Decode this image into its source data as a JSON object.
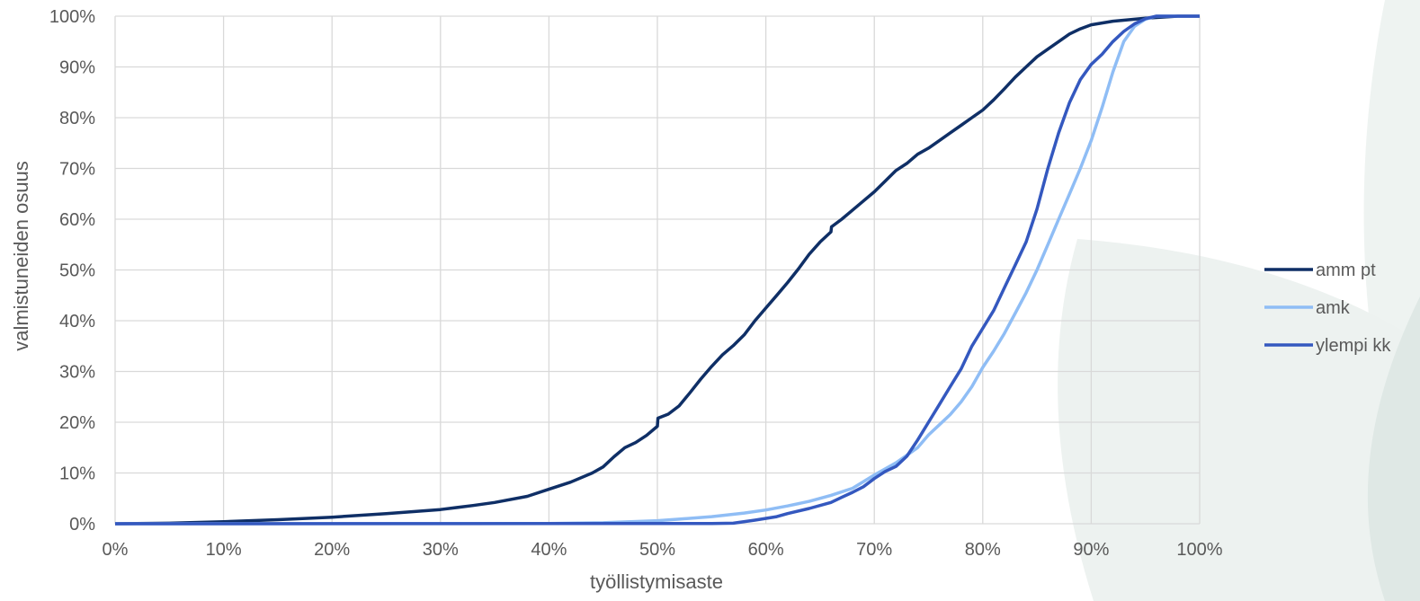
{
  "chart_data": {
    "type": "line",
    "xlabel": "työllistymisaste",
    "ylabel": "valmistuneiden osuus",
    "xlim": [
      0,
      100
    ],
    "ylim": [
      0,
      100
    ],
    "x_ticks": [
      "0%",
      "10%",
      "20%",
      "30%",
      "40%",
      "50%",
      "60%",
      "70%",
      "80%",
      "90%",
      "100%"
    ],
    "y_ticks": [
      "0%",
      "10%",
      "20%",
      "30%",
      "40%",
      "50%",
      "60%",
      "70%",
      "80%",
      "90%",
      "100%"
    ],
    "grid": true,
    "legend_position": "right",
    "series": [
      {
        "name": "amm pt",
        "color": "#0f2f66",
        "points": [
          [
            0,
            0
          ],
          [
            5,
            0.1
          ],
          [
            10,
            0.4
          ],
          [
            15,
            0.8
          ],
          [
            20,
            1.3
          ],
          [
            25,
            2
          ],
          [
            30,
            2.8
          ],
          [
            33,
            3.6
          ],
          [
            35,
            4.2
          ],
          [
            38,
            5.4
          ],
          [
            40,
            6.8
          ],
          [
            42,
            8.2
          ],
          [
            44,
            10
          ],
          [
            45,
            11.2
          ],
          [
            46,
            13.2
          ],
          [
            47,
            15
          ],
          [
            48,
            16
          ],
          [
            49,
            17.4
          ],
          [
            50,
            19.2
          ],
          [
            50.05,
            20.8
          ],
          [
            51,
            21.6
          ],
          [
            52,
            23.2
          ],
          [
            53,
            25.8
          ],
          [
            54,
            28.5
          ],
          [
            55,
            31
          ],
          [
            56,
            33.3
          ],
          [
            57,
            35.1
          ],
          [
            58,
            37.2
          ],
          [
            59,
            40
          ],
          [
            60,
            42.5
          ],
          [
            61,
            45
          ],
          [
            62,
            47.5
          ],
          [
            63,
            50.2
          ],
          [
            64,
            53.1
          ],
          [
            65,
            55.5
          ],
          [
            66,
            57.5
          ],
          [
            66.05,
            58.5
          ],
          [
            67,
            60
          ],
          [
            68,
            61.8
          ],
          [
            69,
            63.6
          ],
          [
            70,
            65.4
          ],
          [
            71,
            67.5
          ],
          [
            72,
            69.6
          ],
          [
            73,
            71
          ],
          [
            74,
            72.8
          ],
          [
            75,
            74
          ],
          [
            76,
            75.5
          ],
          [
            77,
            77
          ],
          [
            78,
            78.5
          ],
          [
            79,
            80
          ],
          [
            80,
            81.5
          ],
          [
            81,
            83.5
          ],
          [
            82,
            85.7
          ],
          [
            83,
            88
          ],
          [
            84,
            90
          ],
          [
            85,
            92
          ],
          [
            86,
            93.5
          ],
          [
            87,
            95
          ],
          [
            88,
            96.5
          ],
          [
            89,
            97.5
          ],
          [
            90,
            98.3
          ],
          [
            92,
            99
          ],
          [
            95,
            99.6
          ],
          [
            98,
            100
          ],
          [
            100,
            100
          ]
        ]
      },
      {
        "name": "amk",
        "color": "#8fbdf5",
        "points": [
          [
            0,
            0
          ],
          [
            40,
            0.05
          ],
          [
            45,
            0.2
          ],
          [
            50,
            0.6
          ],
          [
            52,
            0.9
          ],
          [
            55,
            1.4
          ],
          [
            58,
            2.1
          ],
          [
            60,
            2.7
          ],
          [
            62,
            3.5
          ],
          [
            64,
            4.4
          ],
          [
            66,
            5.6
          ],
          [
            68,
            7
          ],
          [
            70,
            9.6
          ],
          [
            72,
            12
          ],
          [
            74,
            15
          ],
          [
            75,
            17.5
          ],
          [
            76,
            19.5
          ],
          [
            77,
            21.5
          ],
          [
            78,
            24
          ],
          [
            79,
            27
          ],
          [
            80,
            30.8
          ],
          [
            81,
            34
          ],
          [
            82,
            37.5
          ],
          [
            83,
            41.5
          ],
          [
            84,
            45.5
          ],
          [
            85,
            50
          ],
          [
            86,
            55
          ],
          [
            87,
            60
          ],
          [
            88,
            65
          ],
          [
            89,
            70
          ],
          [
            90,
            75.5
          ],
          [
            91,
            82
          ],
          [
            92,
            89
          ],
          [
            93,
            95
          ],
          [
            94,
            98
          ],
          [
            95,
            99.4
          ],
          [
            96,
            100
          ],
          [
            100,
            100
          ]
        ]
      },
      {
        "name": "ylempi kk",
        "color": "#3458bf",
        "points": [
          [
            0,
            0
          ],
          [
            55,
            0.05
          ],
          [
            57,
            0.1
          ],
          [
            59,
            0.7
          ],
          [
            61,
            1.4
          ],
          [
            62,
            2
          ],
          [
            64,
            3
          ],
          [
            66,
            4.2
          ],
          [
            67,
            5.2
          ],
          [
            68,
            6.2
          ],
          [
            69,
            7.3
          ],
          [
            70,
            8.9
          ],
          [
            71,
            10.3
          ],
          [
            72,
            11.3
          ],
          [
            73,
            13.3
          ],
          [
            74,
            16.5
          ],
          [
            75,
            20
          ],
          [
            76,
            23.5
          ],
          [
            77,
            27
          ],
          [
            78,
            30.5
          ],
          [
            79,
            35
          ],
          [
            80,
            38.5
          ],
          [
            81,
            42
          ],
          [
            82,
            46.5
          ],
          [
            83,
            51
          ],
          [
            84,
            55.5
          ],
          [
            85,
            62
          ],
          [
            86,
            70
          ],
          [
            87,
            77
          ],
          [
            88,
            83
          ],
          [
            89,
            87.5
          ],
          [
            90,
            90.5
          ],
          [
            91,
            92.5
          ],
          [
            92,
            95
          ],
          [
            93,
            97
          ],
          [
            94,
            98.5
          ],
          [
            95,
            99.5
          ],
          [
            96,
            100
          ],
          [
            100,
            100
          ]
        ]
      }
    ]
  }
}
